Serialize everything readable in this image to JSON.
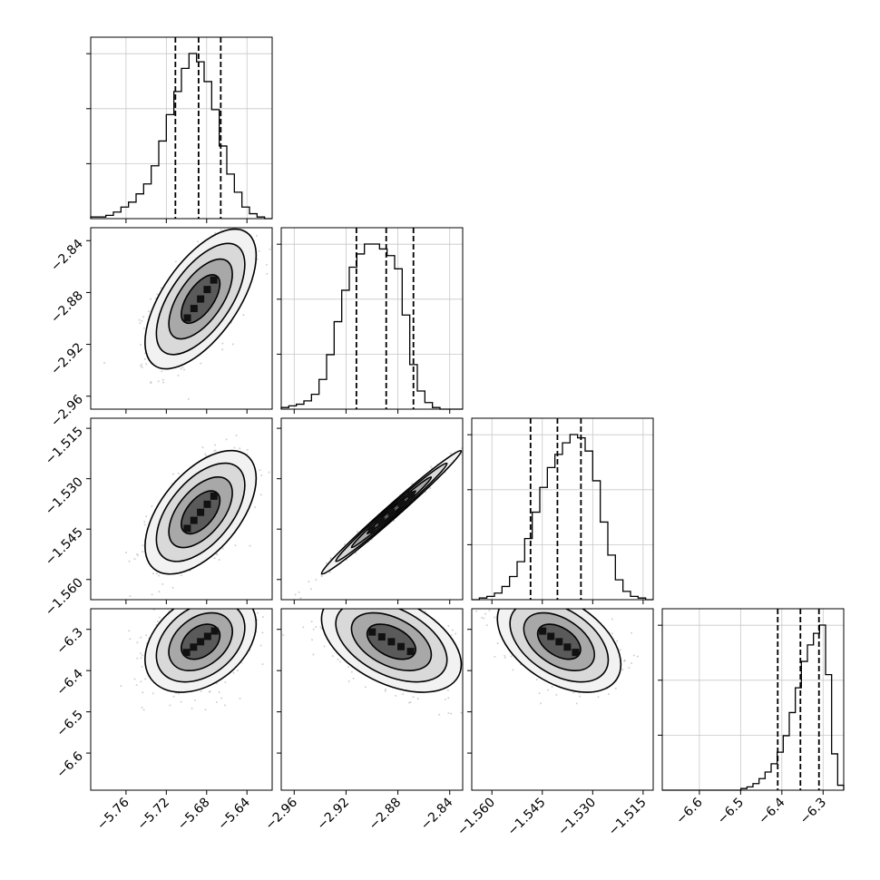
{
  "chart_data": {
    "type": "corner",
    "parameters": [
      {
        "index": 0,
        "ticks": [
          "−5.76",
          "−5.72",
          "−5.68",
          "−5.64"
        ],
        "tick_values": [
          -5.76,
          -5.72,
          -5.68,
          -5.64
        ],
        "range": [
          -5.795,
          -5.615
        ],
        "quantiles": [
          -5.711,
          -5.688,
          -5.666
        ],
        "mode": -5.686
      },
      {
        "index": 1,
        "ticks": [
          "−2.96",
          "−2.92",
          "−2.88",
          "−2.84"
        ],
        "tick_values": [
          -2.96,
          -2.92,
          -2.88,
          -2.84
        ],
        "range": [
          -2.97,
          -2.83
        ],
        "quantiles": [
          -2.912,
          -2.889,
          -2.868
        ],
        "mode": -2.885
      },
      {
        "index": 2,
        "ticks": [
          "−1.560",
          "−1.545",
          "−1.530",
          "−1.515"
        ],
        "tick_values": [
          -1.56,
          -1.545,
          -1.53,
          -1.515
        ],
        "range": [
          -1.566,
          -1.512
        ],
        "quantiles": [
          -1.5485,
          -1.5405,
          -1.5335
        ],
        "mode": -1.54
      },
      {
        "index": 3,
        "ticks": [
          "−6.6",
          "−6.5",
          "−6.4",
          "−6.3"
        ],
        "tick_values": [
          -6.6,
          -6.5,
          -6.4,
          -6.3
        ],
        "range": [
          -6.69,
          -6.25
        ],
        "quantiles": [
          -6.41,
          -6.355,
          -6.31
        ],
        "mode": -6.33
      }
    ],
    "histograms": [
      {
        "param": 0,
        "counts": [
          1,
          1,
          2,
          4,
          7,
          10,
          15,
          21,
          32,
          47,
          63,
          77,
          91,
          100,
          95,
          83,
          66,
          44,
          27,
          16,
          7,
          3,
          1,
          0
        ]
      },
      {
        "param": 1,
        "counts": [
          1,
          2,
          3,
          5,
          9,
          18,
          33,
          53,
          72,
          86,
          94,
          100,
          100,
          97,
          93,
          85,
          57,
          27,
          11,
          4,
          1,
          0,
          0,
          0
        ]
      },
      {
        "param": 2,
        "counts": [
          0,
          1,
          2,
          4,
          8,
          14,
          23,
          37,
          53,
          68,
          80,
          88,
          95,
          100,
          98,
          90,
          72,
          47,
          27,
          12,
          5,
          2,
          1,
          0
        ]
      },
      {
        "param": 3,
        "counts": [
          0,
          0,
          0,
          0,
          0,
          0,
          0,
          0,
          0,
          0,
          0,
          0,
          0,
          1,
          2,
          4,
          7,
          11,
          16,
          23,
          33,
          47,
          62,
          78,
          88,
          95,
          100,
          70,
          22,
          3
        ]
      }
    ],
    "joint_correlations": [
      {
        "x": 0,
        "y": 1,
        "rho": 0.62
      },
      {
        "x": 0,
        "y": 2,
        "rho": 0.55
      },
      {
        "x": 1,
        "y": 2,
        "rho": 0.99
      },
      {
        "x": 0,
        "y": 3,
        "rho": 0.35
      },
      {
        "x": 1,
        "y": 3,
        "rho": -0.45
      },
      {
        "x": 2,
        "y": 3,
        "rho": -0.45
      }
    ],
    "grid": true,
    "quantile_lines": "dashed",
    "levels": 4
  }
}
